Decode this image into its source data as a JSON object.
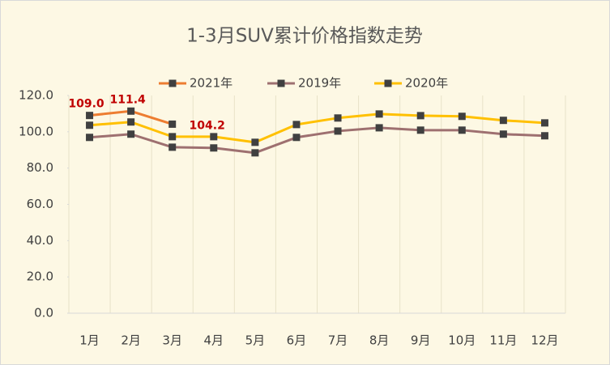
{
  "chart_data": {
    "type": "line",
    "title": "1-3月SUV累计价格指数走势",
    "categories": [
      "1月",
      "2月",
      "3月",
      "4月",
      "5月",
      "6月",
      "7月",
      "8月",
      "9月",
      "10月",
      "11月",
      "12月"
    ],
    "series": [
      {
        "name": "2021年",
        "color": "#ed7d31",
        "values": [
          109.0,
          111.4,
          104.2,
          null,
          null,
          null,
          null,
          null,
          null,
          null,
          null,
          null
        ],
        "value_labels": [
          "109.0",
          "111.4",
          "104.2",
          null,
          null,
          null,
          null,
          null,
          null,
          null,
          null,
          null
        ]
      },
      {
        "name": "2019年",
        "color": "#9e7070",
        "values": [
          96.9,
          98.7,
          91.5,
          91.1,
          88.4,
          96.9,
          100.4,
          102.2,
          100.9,
          100.9,
          98.7,
          97.8
        ]
      },
      {
        "name": "2020年",
        "color": "#ffc000",
        "values": [
          103.6,
          105.4,
          97.3,
          97.3,
          94.2,
          104.0,
          107.6,
          109.8,
          108.9,
          108.5,
          106.3,
          104.9
        ]
      }
    ],
    "marker_color": "#404040",
    "ylim": [
      0,
      120
    ],
    "yticks": [
      {
        "value": 0,
        "label": "0.0"
      },
      {
        "value": 20,
        "label": "20.0"
      },
      {
        "value": 40,
        "label": "40.0"
      },
      {
        "value": 60,
        "label": "60.0"
      },
      {
        "value": 80,
        "label": "80.0"
      },
      {
        "value": 100,
        "label": "100.0"
      },
      {
        "value": 120,
        "label": "120.0"
      }
    ],
    "grid": true,
    "legend": "top"
  }
}
